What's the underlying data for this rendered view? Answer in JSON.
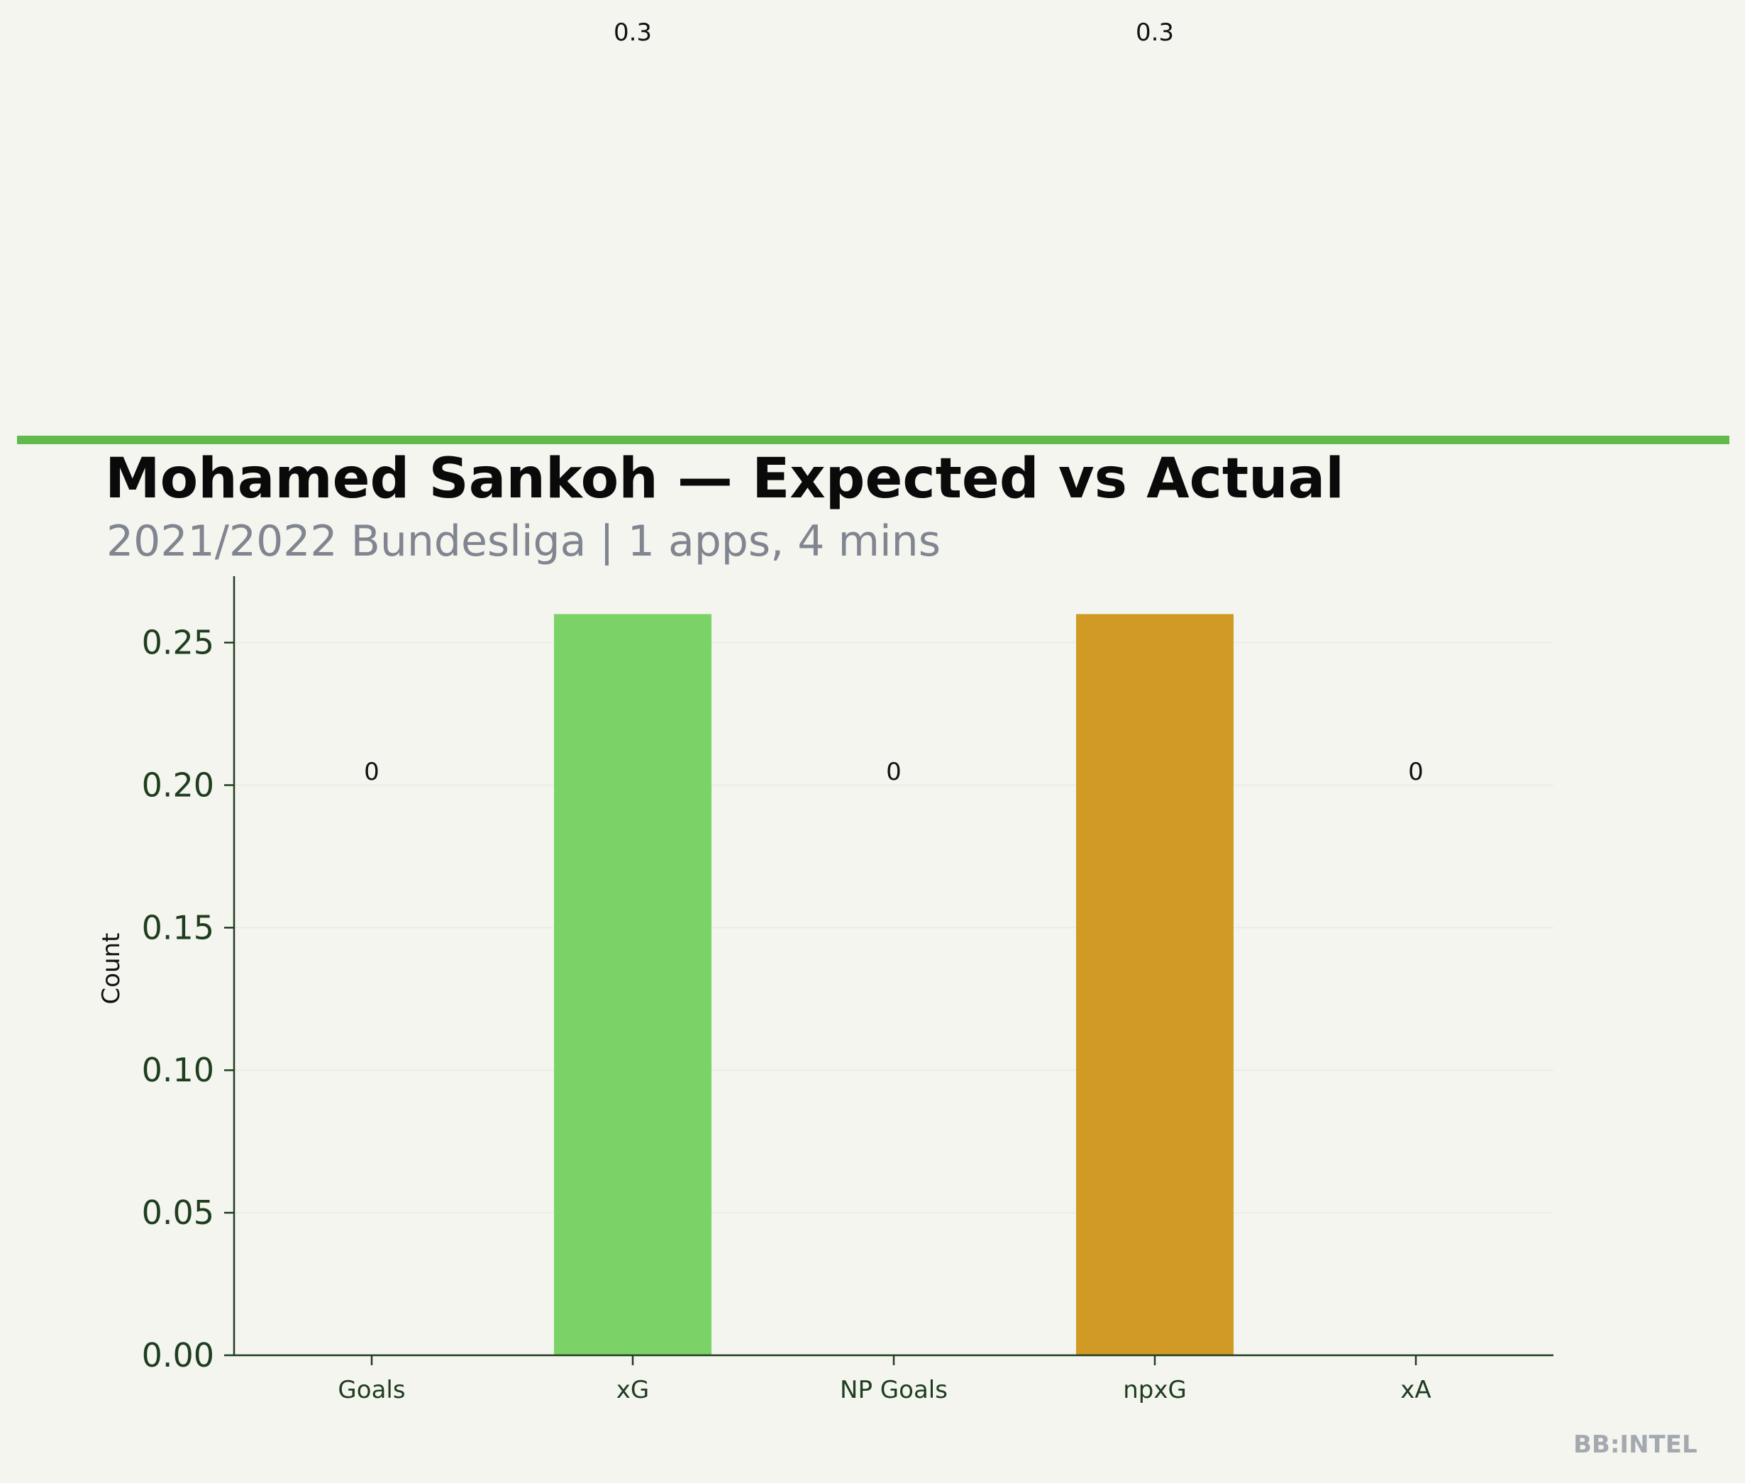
{
  "header": {
    "title": "Mohamed Sankoh — Expected vs Actual",
    "subtitle": "2021/2022 Bundesliga | 1 apps, 4 mins"
  },
  "branding": {
    "text": "BB:INTEL"
  },
  "colors": {
    "background": "#f4f5ef",
    "accent_rule": "#62b94c",
    "axis": "#1f3d1f",
    "grid": "#ebece6"
  },
  "chart_data": {
    "type": "bar",
    "ylabel": "Count",
    "xlabel": "",
    "categories": [
      "Goals",
      "xG",
      "NP Goals",
      "npxG",
      "xA"
    ],
    "values": [
      0,
      0.26,
      0,
      0.26,
      0
    ],
    "data_labels": [
      "0",
      "0.3",
      "0",
      "0.3",
      "0"
    ],
    "bar_colors": [
      "#62b94c",
      "#7bd267",
      "#62b94c",
      "#d19a24",
      "#62b94c"
    ],
    "ylim": [
      0,
      0.2733
    ],
    "yticks": [
      0,
      0.05,
      0.1,
      0.15,
      0.2,
      0.25
    ],
    "ytick_labels": [
      "0.00",
      "0.05",
      "0.10",
      "0.15",
      "0.20",
      "0.25"
    ],
    "grid": "horizontal",
    "legend": "none"
  }
}
